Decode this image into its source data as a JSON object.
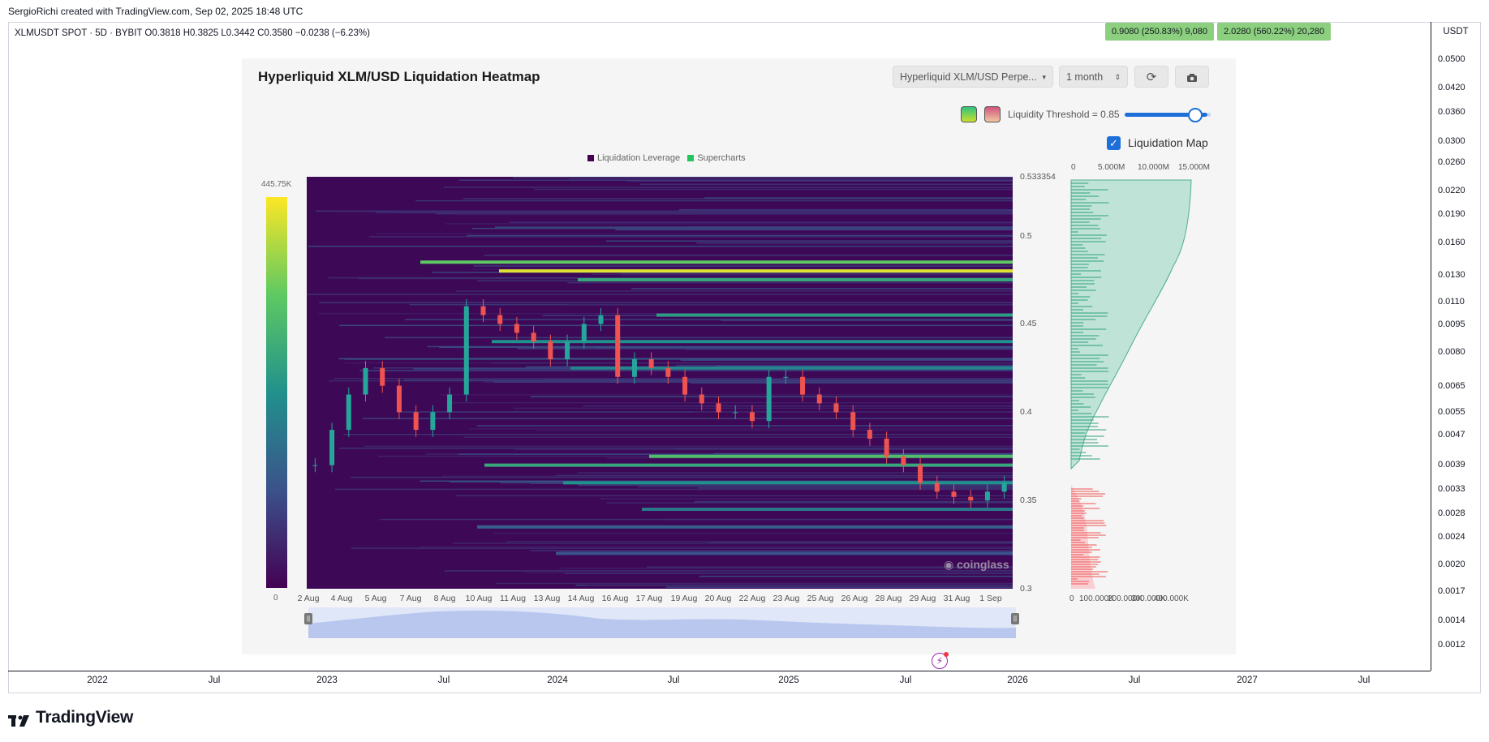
{
  "header": {
    "created_line": "SergioRichi created with TradingView.com, Sep 02, 2025 18:48 UTC",
    "symbol_line": "XLMUSDT SPOT · 5D · BYBIT  O0.3818  H0.3825  L0.3442  C0.3580  −0.0238 (−6.23%)"
  },
  "badges": {
    "left": "0.9080 (250.83%) 9,080",
    "right": "2.0280 (560.22%) 20,280",
    "color": "#8ccf7e"
  },
  "price_axis": {
    "currency": "USDT",
    "ticks": [
      "0.0500",
      "0.0420",
      "0.0360",
      "0.0300",
      "0.0260",
      "0.0220",
      "0.0190",
      "0.0160",
      "0.0130",
      "0.0110",
      "0.0095",
      "0.0080",
      "0.0065",
      "0.0055",
      "0.0047",
      "0.0039",
      "0.0033",
      "0.0028",
      "0.0024",
      "0.0020",
      "0.0017",
      "0.0014",
      "0.0012"
    ]
  },
  "time_axis": {
    "ticks": [
      "2022",
      "Jul",
      "2023",
      "Jul",
      "2024",
      "Jul",
      "2025",
      "Jul",
      "2026",
      "Jul",
      "2027",
      "Jul"
    ]
  },
  "footer": {
    "brand": "TradingView"
  },
  "panel": {
    "title": "Hyperliquid XLM/USD Liquidation Heatmap",
    "pair_select": "Hyperliquid XLM/USD Perpe...",
    "range_select": "1 month",
    "threshold_label": "Liquidity Threshold = 0.85",
    "threshold_value": 0.85,
    "liq_map_label": "Liquidation Map",
    "liq_map_checked": true,
    "legend": [
      {
        "label": "Liquidation Leverage",
        "color": "#440154"
      },
      {
        "label": "Supercharts",
        "color": "#22c55e"
      }
    ],
    "colorbar": {
      "max": "445.75K",
      "min": "0"
    },
    "watermark": "coinglass",
    "x_ticks": [
      "2 Aug",
      "4 Aug",
      "5 Aug",
      "7 Aug",
      "8 Aug",
      "10 Aug",
      "11 Aug",
      "13 Aug",
      "14 Aug",
      "16 Aug",
      "17 Aug",
      "19 Aug",
      "20 Aug",
      "22 Aug",
      "23 Aug",
      "25 Aug",
      "26 Aug",
      "28 Aug",
      "29 Aug",
      "31 Aug",
      "1 Sep"
    ],
    "y_ticks": [
      "0.533354",
      "0.5",
      "0.45",
      "0.4",
      "0.35",
      "0.3"
    ],
    "side_top_ticks": [
      "0",
      "5.000M",
      "10.000M",
      "15.000M"
    ],
    "side_bottom_ticks": [
      "0",
      "100.000K",
      "200.000K",
      "300.000K",
      "400.000K"
    ]
  },
  "chart_data": {
    "type": "heatmap",
    "title": "Hyperliquid XLM/USD Liquidation Heatmap",
    "x_categories": [
      "2 Aug",
      "4 Aug",
      "5 Aug",
      "7 Aug",
      "8 Aug",
      "10 Aug",
      "11 Aug",
      "13 Aug",
      "14 Aug",
      "16 Aug",
      "17 Aug",
      "19 Aug",
      "20 Aug",
      "22 Aug",
      "23 Aug",
      "25 Aug",
      "26 Aug",
      "28 Aug",
      "29 Aug",
      "31 Aug",
      "1 Sep"
    ],
    "ylim": [
      0.3,
      0.533354
    ],
    "colorbar_range": [
      0,
      445750
    ],
    "price_series": {
      "name": "Supercharts",
      "values": [
        0.37,
        0.39,
        0.41,
        0.425,
        0.415,
        0.4,
        0.39,
        0.4,
        0.41,
        0.46,
        0.455,
        0.45,
        0.445,
        0.44,
        0.43,
        0.44,
        0.45,
        0.455,
        0.42,
        0.43,
        0.425,
        0.42,
        0.41,
        0.405,
        0.4,
        0.4,
        0.395,
        0.42,
        0.42,
        0.41,
        0.405,
        0.4,
        0.39,
        0.385,
        0.375,
        0.37,
        0.36,
        0.355,
        0.352,
        0.35,
        0.355,
        0.36
      ]
    },
    "bands": [
      {
        "price": 0.485,
        "intensity": 0.75
      },
      {
        "price": 0.48,
        "intensity": 0.95
      },
      {
        "price": 0.475,
        "intensity": 0.6
      },
      {
        "price": 0.455,
        "intensity": 0.55
      },
      {
        "price": 0.44,
        "intensity": 0.5
      },
      {
        "price": 0.425,
        "intensity": 0.45
      },
      {
        "price": 0.375,
        "intensity": 0.7
      },
      {
        "price": 0.37,
        "intensity": 0.6
      },
      {
        "price": 0.36,
        "intensity": 0.5
      },
      {
        "price": 0.345,
        "intensity": 0.4
      },
      {
        "price": 0.335,
        "intensity": 0.3
      },
      {
        "price": 0.32,
        "intensity": 0.25
      }
    ]
  }
}
